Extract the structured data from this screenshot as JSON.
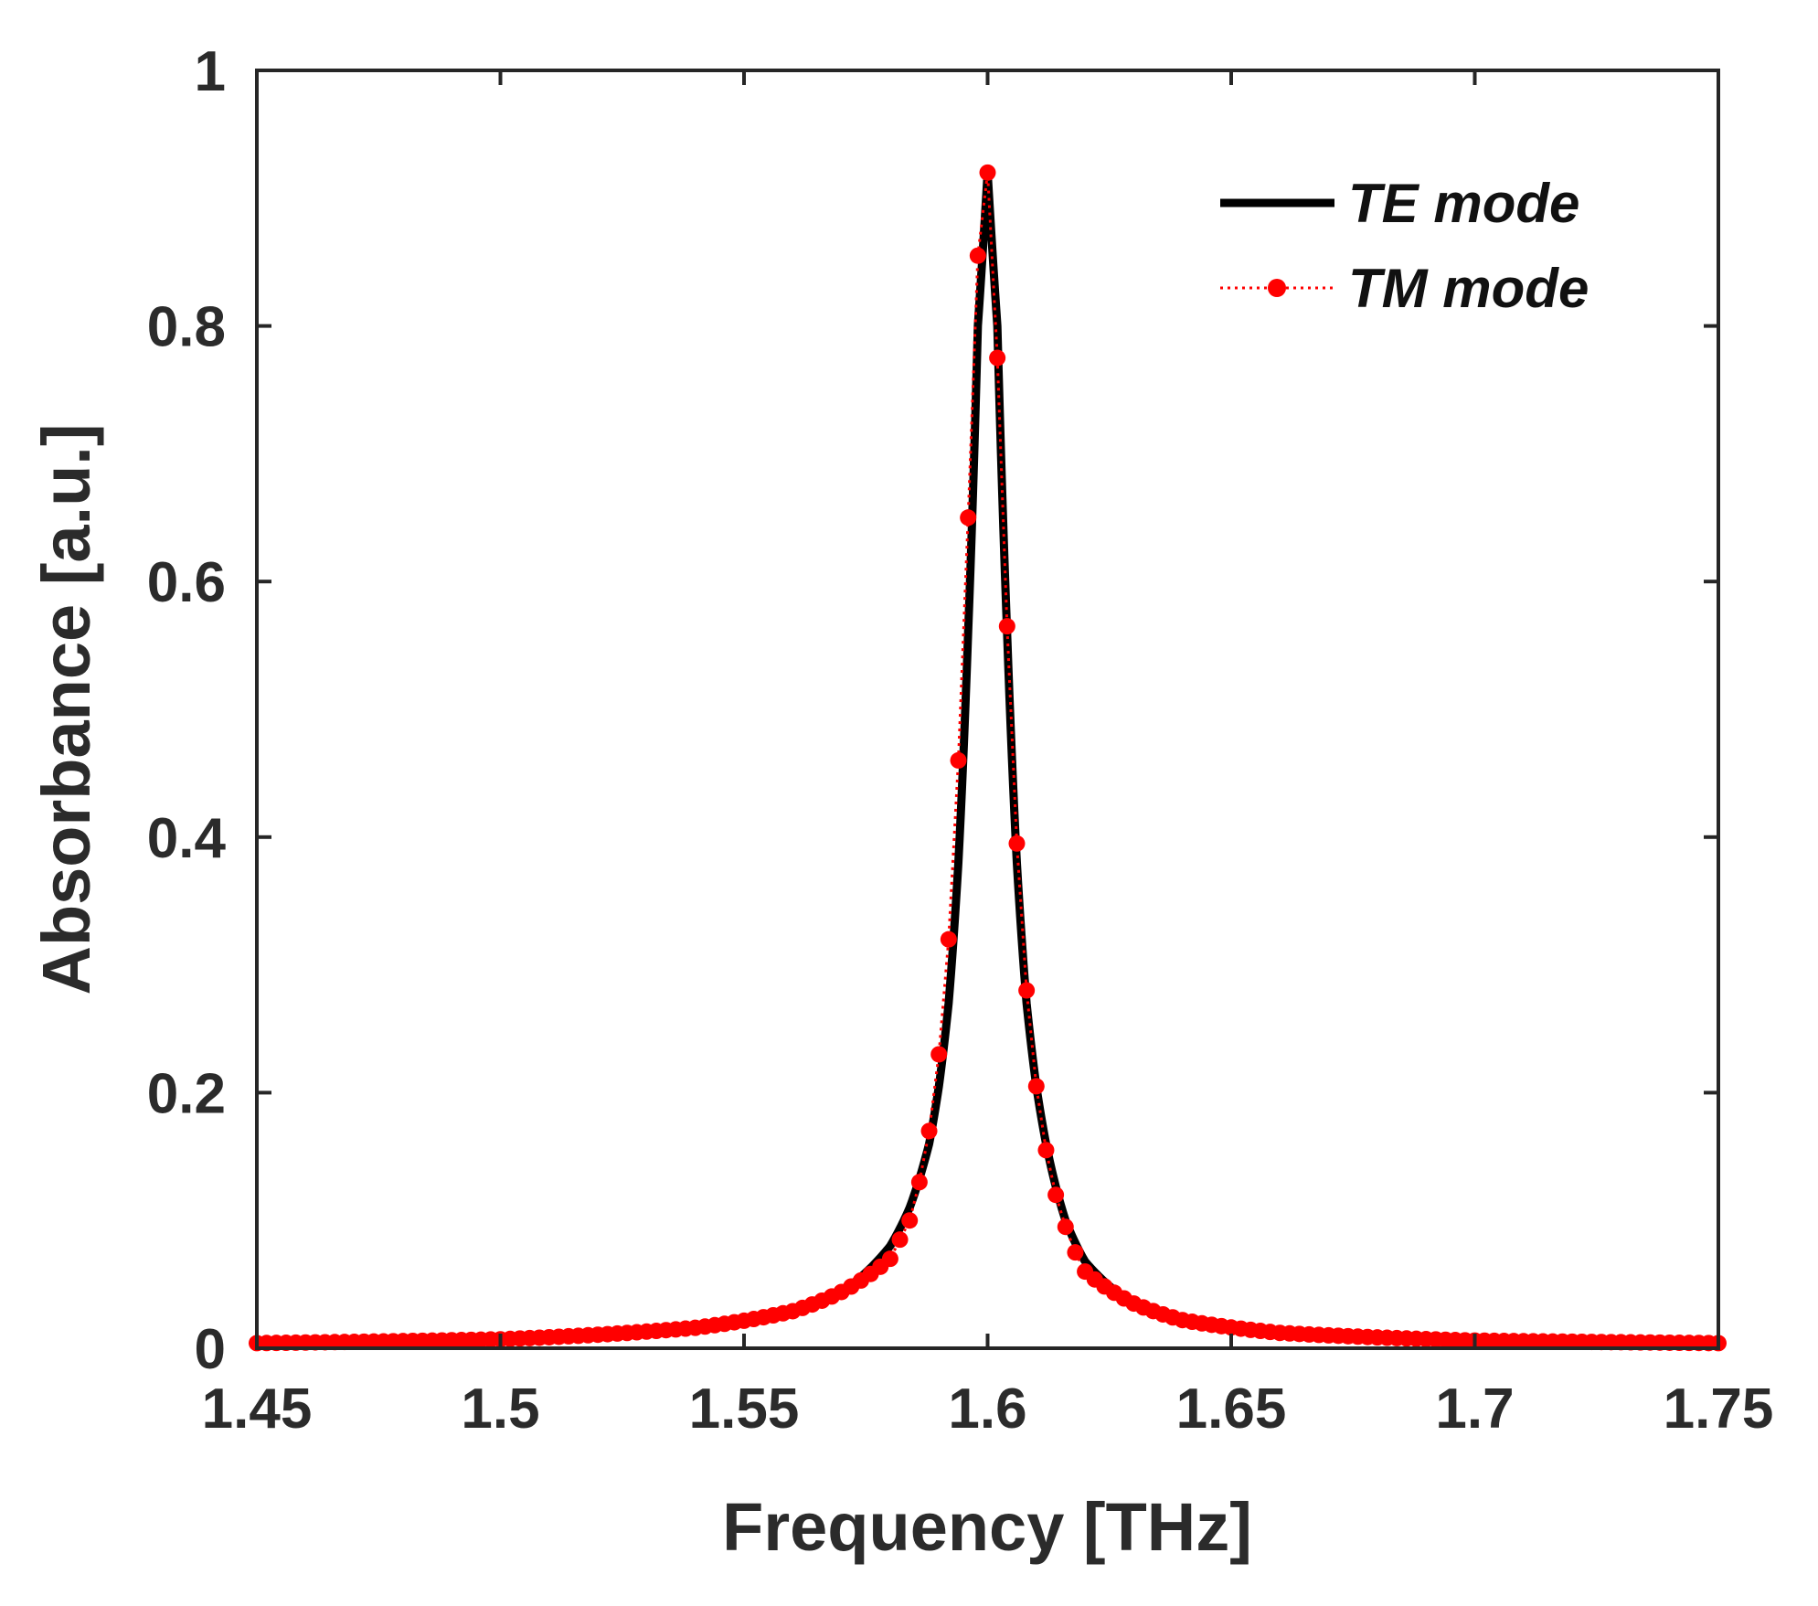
{
  "chart_data": {
    "type": "line",
    "title": "",
    "xlabel": "Frequency [THz]",
    "ylabel": "Absorbance [a.u.]",
    "xlim": [
      1.45,
      1.75
    ],
    "ylim": [
      0,
      1
    ],
    "xticks": [
      1.45,
      1.5,
      1.55,
      1.6,
      1.65,
      1.7,
      1.75
    ],
    "xtick_labels": [
      "1.45",
      "1.5",
      "1.55",
      "1.6",
      "1.65",
      "1.7",
      "1.75"
    ],
    "yticks": [
      0,
      0.2,
      0.4,
      0.6,
      0.8,
      1
    ],
    "ytick_labels": [
      "0",
      "0.2",
      "0.4",
      "0.6",
      "0.8",
      "1"
    ],
    "grid": false,
    "legend_position": "top-right",
    "peak": {
      "x": 1.6,
      "y": 0.92
    },
    "series": [
      {
        "name": "TE mode",
        "style": "solid line",
        "color": "#000000",
        "x": [
          1.45,
          1.5,
          1.54,
          1.56,
          1.57,
          1.58,
          1.584,
          1.588,
          1.59,
          1.592,
          1.594,
          1.596,
          1.598,
          1.6,
          1.602,
          1.604,
          1.606,
          1.608,
          1.61,
          1.612,
          1.616,
          1.62,
          1.63,
          1.64,
          1.66,
          1.7,
          1.75
        ],
        "values": [
          0.004,
          0.007,
          0.016,
          0.029,
          0.044,
          0.08,
          0.11,
          0.16,
          0.205,
          0.27,
          0.38,
          0.56,
          0.8,
          0.92,
          0.8,
          0.56,
          0.38,
          0.27,
          0.205,
          0.16,
          0.1,
          0.068,
          0.035,
          0.022,
          0.012,
          0.006,
          0.004
        ]
      },
      {
        "name": "TM mode",
        "style": "dotted line with filled circle markers",
        "color": "#ff0000",
        "x": [
          1.45,
          1.5,
          1.54,
          1.56,
          1.57,
          1.58,
          1.582,
          1.584,
          1.586,
          1.588,
          1.59,
          1.592,
          1.594,
          1.596,
          1.598,
          1.6,
          1.602,
          1.604,
          1.606,
          1.608,
          1.61,
          1.612,
          1.614,
          1.616,
          1.618,
          1.62,
          1.63,
          1.64,
          1.66,
          1.7,
          1.75
        ],
        "values": [
          0.004,
          0.007,
          0.016,
          0.029,
          0.044,
          0.07,
          0.085,
          0.1,
          0.13,
          0.17,
          0.23,
          0.32,
          0.46,
          0.65,
          0.855,
          0.92,
          0.775,
          0.565,
          0.395,
          0.28,
          0.205,
          0.155,
          0.12,
          0.095,
          0.075,
          0.06,
          0.035,
          0.022,
          0.012,
          0.006,
          0.004
        ]
      }
    ]
  }
}
